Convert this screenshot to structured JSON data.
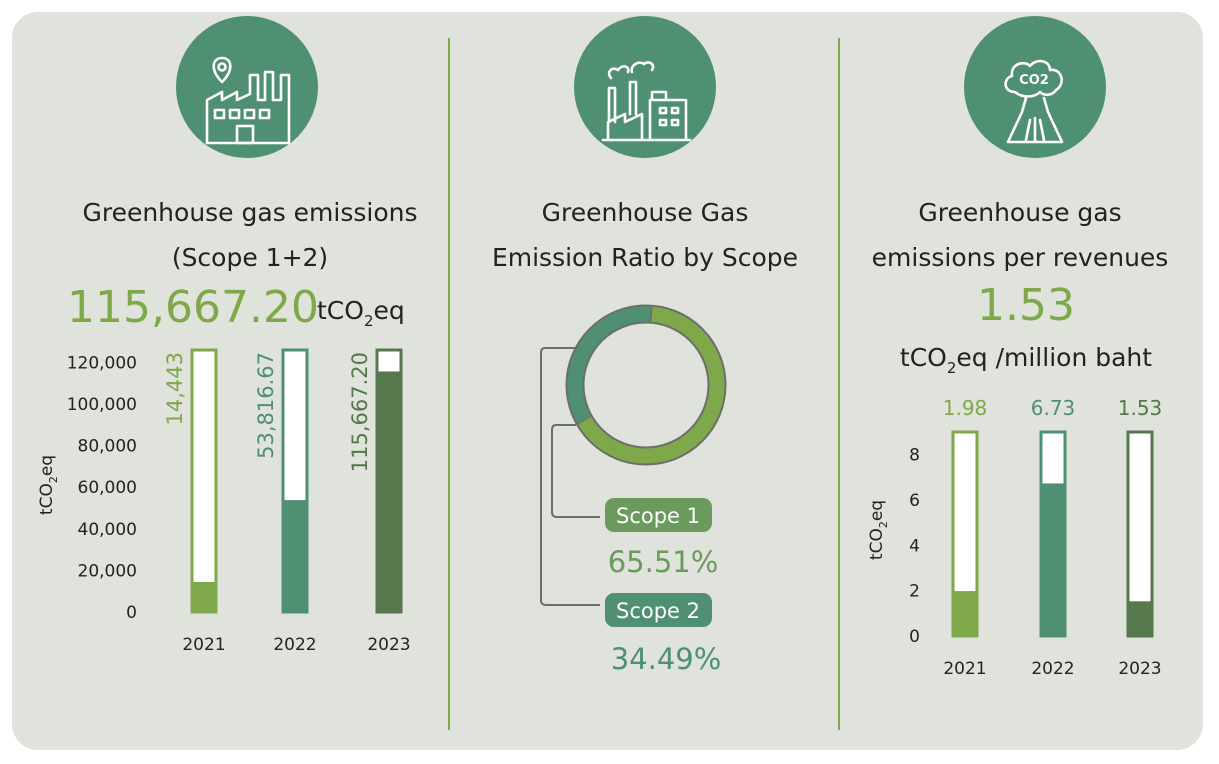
{
  "colors": {
    "background": "#dfe3db",
    "accent_light": "#7ea84a",
    "accent_teal": "#4f9072",
    "accent_dark": "#55784c",
    "scope1": "#6b9a5d",
    "divider": "#7ea84a",
    "icon_circle": "#4f9072"
  },
  "panels": [
    {
      "icon": "factory-location-icon",
      "title_lines": [
        "Greenhouse gas emissions",
        "(Scope 1+2)"
      ],
      "big_value": "115,667.20",
      "unit": {
        "pre": "tCO",
        "sub": "2",
        "post": "eq"
      }
    },
    {
      "icon": "industrial-plant-icon",
      "title_lines": [
        "Greenhouse Gas",
        "Emission Ratio by Scope"
      ]
    },
    {
      "icon": "co2-volcano-icon",
      "title_lines": [
        "Greenhouse gas",
        "emissions per revenues"
      ],
      "big_value": "1.53",
      "unit": {
        "pre": "tCO",
        "sub": "2",
        "post": "eq /million baht"
      }
    }
  ],
  "chart_data": [
    {
      "type": "bar",
      "title": "Greenhouse gas emissions (Scope 1+2)",
      "ylabel": {
        "pre": "tCO",
        "sub": "2",
        "post": "eq"
      },
      "categories": [
        "2021",
        "2022",
        "2023"
      ],
      "values": [
        14443,
        53816.67,
        115667.2
      ],
      "labels": [
        "14,443",
        "53,816.67",
        "115,667.20"
      ],
      "bar_colors": [
        "#7ea84a",
        "#4f9072",
        "#55784c"
      ],
      "yticks": [
        0,
        20000,
        40000,
        60000,
        80000,
        100000,
        120000
      ],
      "ytick_labels": [
        "0",
        "20,000",
        "40,000",
        "60,000",
        "80,000",
        "100,000",
        "120,000"
      ],
      "ylim": [
        0,
        126000
      ]
    },
    {
      "type": "pie",
      "title": "Greenhouse Gas Emission Ratio by Scope",
      "slices": [
        {
          "name": "Scope 1",
          "value": 65.51,
          "label": "65.51%",
          "color": "#7ea84a"
        },
        {
          "name": "Scope 2",
          "value": 34.49,
          "label": "34.49%",
          "color": "#4f9072"
        }
      ]
    },
    {
      "type": "bar",
      "title": "Greenhouse gas emissions per revenues",
      "ylabel": {
        "pre": "tCO",
        "sub": "2",
        "post": "eq"
      },
      "categories": [
        "2021",
        "2022",
        "2023"
      ],
      "values": [
        1.98,
        6.73,
        1.53
      ],
      "labels": [
        "1.98",
        "6.73",
        "1.53"
      ],
      "bar_colors": [
        "#7ea84a",
        "#4f9072",
        "#55784c"
      ],
      "yticks": [
        0,
        2,
        4,
        6,
        8
      ],
      "ytick_labels": [
        "0",
        "2",
        "4",
        "6",
        "8"
      ],
      "ylim": [
        0,
        9
      ]
    }
  ]
}
